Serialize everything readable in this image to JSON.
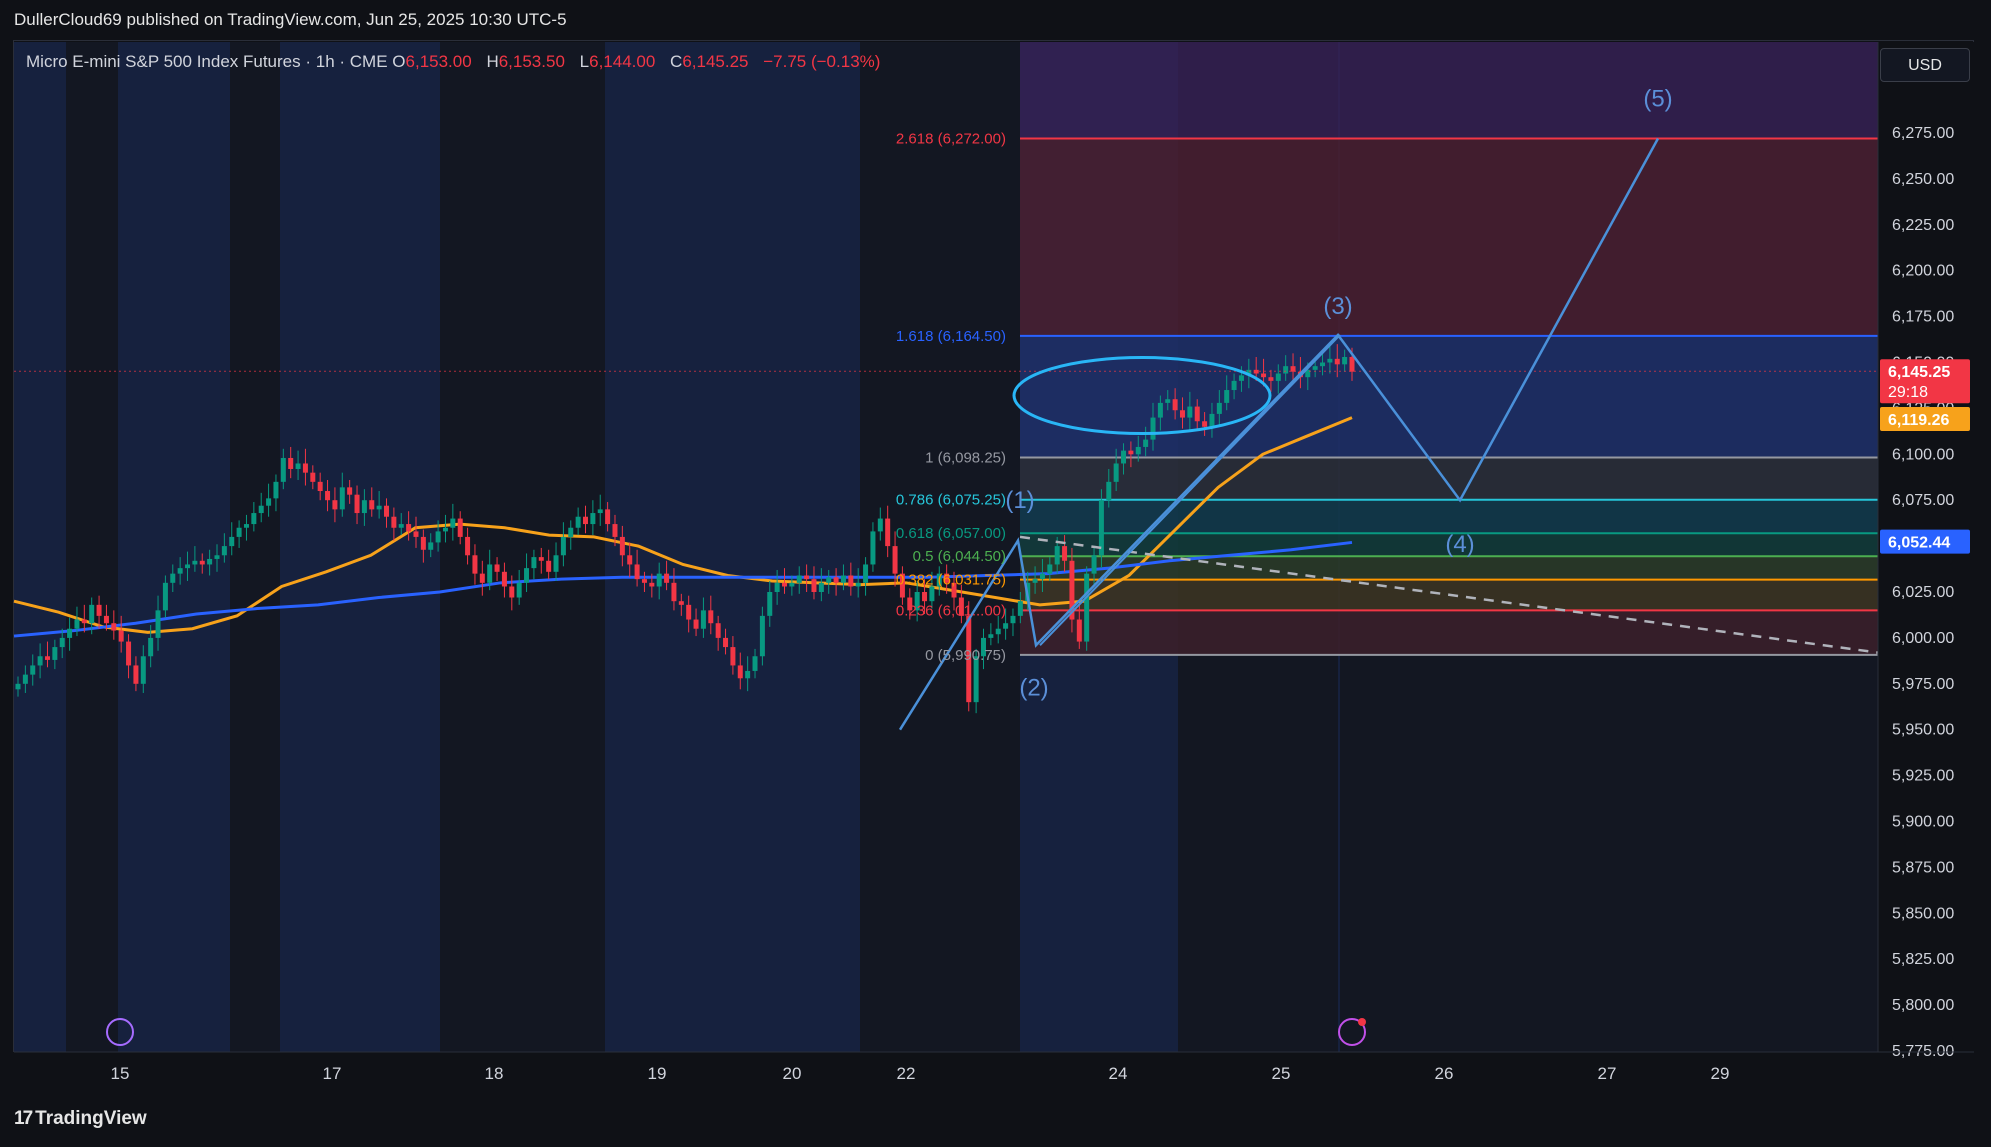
{
  "header": {
    "published": "DullerCloud69 published on TradingView.com, Jun 25, 2025 10:30 UTC-5"
  },
  "legend": {
    "symbol": "Micro E-mini S&P 500 Index Futures · 1h · CME",
    "o_label": "O",
    "o": "6,153.00",
    "h_label": "H",
    "h": "6,153.50",
    "l_label": "L",
    "l": "6,144.00",
    "c_label": "C",
    "c": "6,145.25",
    "change": "−7.75 (−0.13%)"
  },
  "currency": "USD",
  "brand": {
    "name": "TradingView"
  },
  "colors": {
    "up": "#089981",
    "down": "#f23645",
    "ma_orange": "#f7a21b",
    "ma_blue": "#2962ff",
    "wave": "#4a90d9"
  },
  "chart_data": {
    "type": "candlestick",
    "y_range": [
      5775,
      6290
    ],
    "price_ticks": [
      "6,275.00",
      "6,250.00",
      "6,225.00",
      "6,200.00",
      "6,175.00",
      "6,150.00",
      "6,125.00",
      "6,100.00",
      "6,075.00",
      "6,050.00",
      "6,025.00",
      "6,000.00",
      "5,975.00",
      "5,950.00",
      "5,925.00",
      "5,900.00",
      "5,875.00",
      "5,850.00",
      "5,825.00",
      "5,800.00",
      "5,775.00"
    ],
    "price_tick_values": [
      6275,
      6250,
      6225,
      6200,
      6175,
      6150,
      6125,
      6100,
      6075,
      6050,
      6025,
      6000,
      5975,
      5950,
      5925,
      5900,
      5875,
      5850,
      5825,
      5800,
      5775
    ],
    "x_ticks": [
      "15",
      "17",
      "18",
      "19",
      "20",
      "22",
      "22",
      "24",
      "25",
      "26",
      "27",
      "29"
    ],
    "fib_levels": [
      {
        "label": "2.618 (6,272.00)",
        "value": 6272.0,
        "color": "#f23645"
      },
      {
        "label": "1.618 (6,164.50)",
        "value": 6164.5,
        "color": "#2962ff"
      },
      {
        "label": "1 (6,098.25)",
        "value": 6098.25,
        "color": "#9598a1"
      },
      {
        "label": "0.786 (6,075.25)",
        "value": 6075.25,
        "color": "#26c6da"
      },
      {
        "label": "0.618 (6,057.00)",
        "value": 6057.0,
        "color": "#089981"
      },
      {
        "label": "0.5 (6,044.50)",
        "value": 6044.5,
        "color": "#4caf50"
      },
      {
        "label": "0.382 (6,031.75)",
        "value": 6031.75,
        "color": "#ff9800"
      },
      {
        "label": "0.236 (6,01...00)",
        "value": 6015.0,
        "color": "#f23645"
      },
      {
        "label": "0 (5,990.75)",
        "value": 5990.75,
        "color": "#9598a1"
      }
    ],
    "badges": [
      {
        "text": "6,145.25",
        "value": 6145.25,
        "color": "#f23645",
        "sub": "29:18"
      },
      {
        "text": "6,119.26",
        "value": 6119.26,
        "color": "#f7a21b"
      },
      {
        "text": "6,052.44",
        "value": 6052.44,
        "color": "#2962ff"
      }
    ],
    "waves": [
      {
        "label": "(1)",
        "value": 6075
      },
      {
        "label": "(2)",
        "value": 5985
      },
      {
        "label": "(3)",
        "value": 6170
      },
      {
        "label": "(4)",
        "value": 6062
      },
      {
        "label": "(5)",
        "value": 6285
      }
    ],
    "wave_path": [
      5950,
      6053,
      5996,
      6165,
      6075,
      6272
    ],
    "ma_orange": [
      6020,
      6014,
      6006,
      6003,
      6005,
      6012,
      6028,
      6036,
      6045,
      6060,
      6062,
      6060,
      6056,
      6055,
      6050,
      6040,
      6034,
      6031,
      6030,
      6029,
      6030,
      6026,
      6022,
      6018,
      6020,
      6034,
      6058,
      6082,
      6100,
      6110,
      6120
    ],
    "ma_blue": [
      6001,
      6004,
      6008,
      6013,
      6016,
      6018,
      6022,
      6025,
      6030,
      6032,
      6033,
      6033,
      6033,
      6033,
      6033,
      6033,
      6034,
      6035,
      6038,
      6042,
      6045,
      6048,
      6052
    ],
    "closes": [
      5975,
      5980,
      5985,
      5990,
      5988,
      5995,
      6000,
      6005,
      6010,
      6008,
      6018,
      6012,
      6008,
      6004,
      5998,
      5985,
      5975,
      5990,
      6000,
      6015,
      6030,
      6035,
      6038,
      6040,
      6042,
      6040,
      6043,
      6045,
      6050,
      6055,
      6060,
      6062,
      6068,
      6072,
      6076,
      6085,
      6098,
      6092,
      6095,
      6090,
      6085,
      6080,
      6075,
      6070,
      6082,
      6078,
      6068,
      6075,
      6070,
      6072,
      6066,
      6060,
      6062,
      6058,
      6055,
      6048,
      6052,
      6058,
      6060,
      6065,
      6055,
      6045,
      6035,
      6030,
      6040,
      6036,
      6028,
      6022,
      6030,
      6038,
      6044,
      6042,
      6036,
      6045,
      6055,
      6060,
      6066,
      6062,
      6068,
      6070,
      6062,
      6055,
      6045,
      6040,
      6032,
      6030,
      6028,
      6035,
      6030,
      6020,
      6018,
      6010,
      6005,
      6015,
      6008,
      6000,
      5995,
      5985,
      5978,
      5982,
      5990,
      6012,
      6025,
      6030,
      6028,
      6030,
      6034,
      6032,
      6025,
      6030,
      6033,
      6030,
      6034,
      6028,
      6030,
      6040,
      6058,
      6065,
      6050,
      6035,
      6022,
      6015,
      6025,
      6020,
      6028,
      6035,
      6030,
      6022,
      6012,
      5965,
      5990,
      6000,
      6002,
      6005,
      6008,
      6012,
      6020,
      6030,
      6032,
      6035,
      6040,
      6050,
      6042,
      6010,
      5998,
      6035,
      6045,
      6075,
      6085,
      6095,
      6102,
      6100,
      6104,
      6108,
      6120,
      6128,
      6130,
      6124,
      6120,
      6126,
      6118,
      6115,
      6122,
      6128,
      6135,
      6140,
      6143,
      6146,
      6144,
      6142,
      6140,
      6144,
      6148,
      6145,
      6142,
      6146,
      6148,
      6150,
      6152,
      6149,
      6153,
      6145
    ]
  }
}
